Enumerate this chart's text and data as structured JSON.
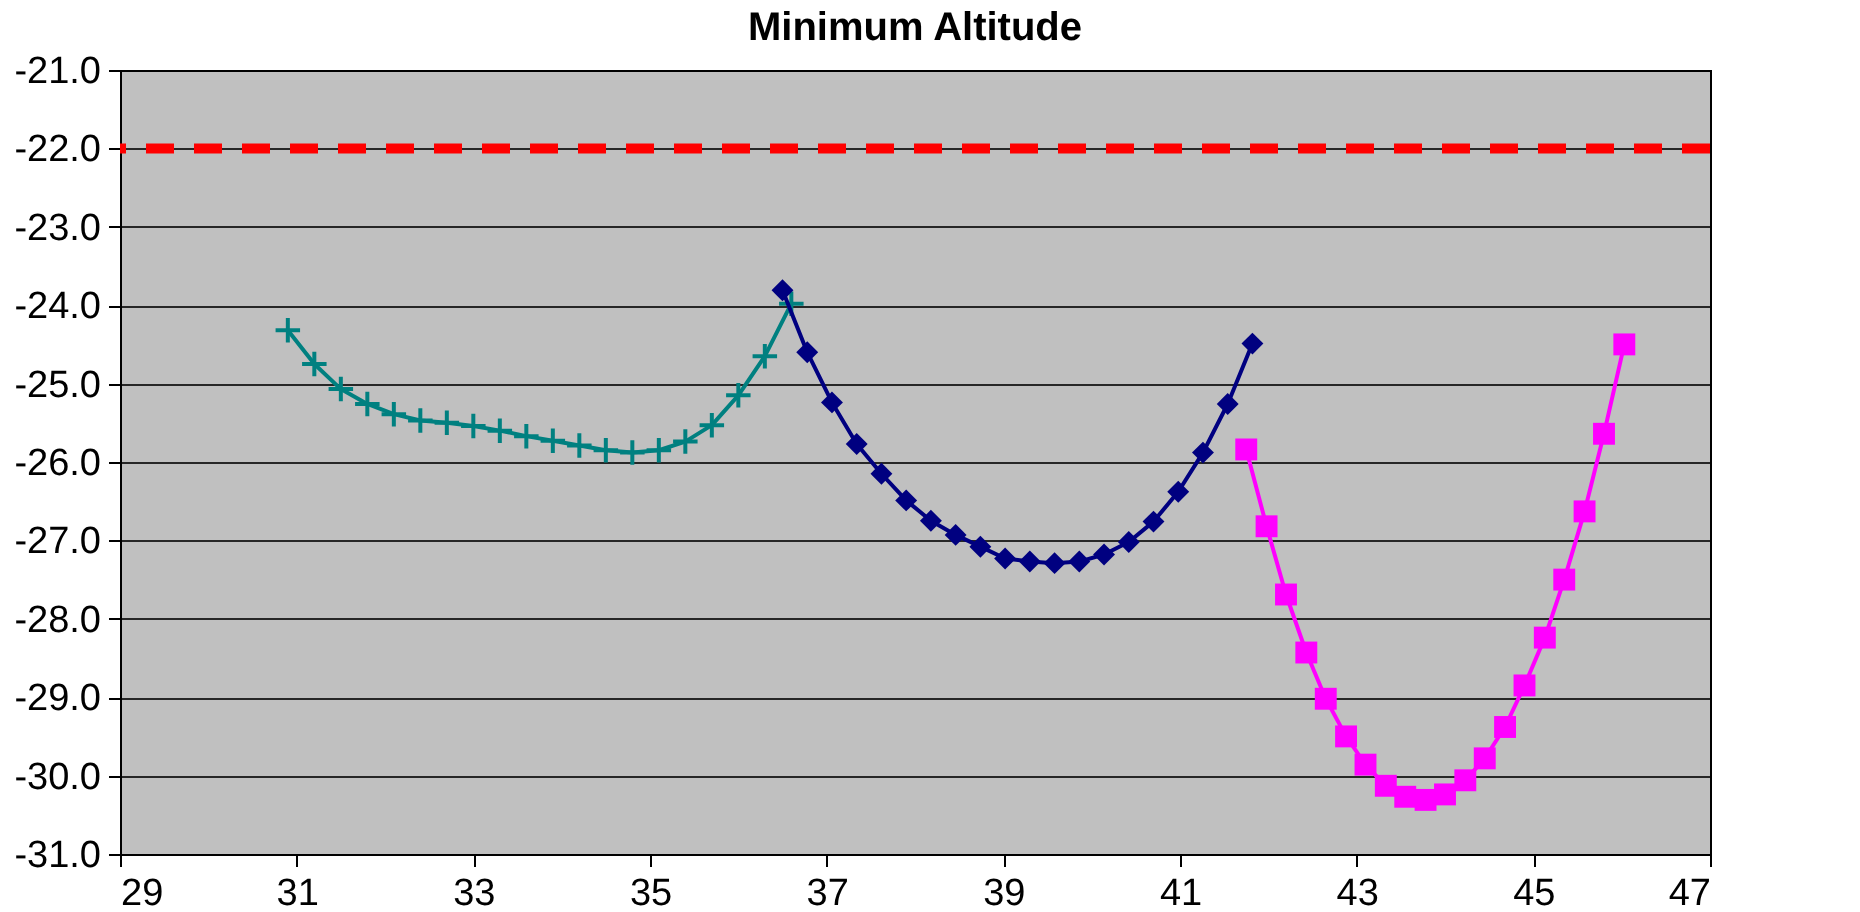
{
  "chart_data": {
    "type": "line",
    "title": "Minimum Altitude",
    "xlim": [
      29,
      47
    ],
    "xticks": [
      29,
      31,
      33,
      35,
      37,
      39,
      41,
      43,
      45,
      47
    ],
    "ylim": [
      -31,
      -21
    ],
    "yticks": [
      {
        "value": -31,
        "label": "-31.0"
      },
      {
        "value": -30,
        "label": "-30.0"
      },
      {
        "value": -29,
        "label": "-29.0"
      },
      {
        "value": -28,
        "label": "-28.0"
      },
      {
        "value": -27,
        "label": "-27.0"
      },
      {
        "value": -26,
        "label": "-26.0"
      },
      {
        "value": -25,
        "label": "-25.0"
      },
      {
        "value": -24,
        "label": "-24.0"
      },
      {
        "value": -23,
        "label": "-23.0"
      },
      {
        "value": -22,
        "label": "-22.0"
      },
      {
        "value": -21,
        "label": "-21.0"
      }
    ],
    "grid": "y",
    "legend": false,
    "line_style": "solid",
    "ref_lines": [
      {
        "axis": "y",
        "value": -22,
        "label": null,
        "color": "#ff0000",
        "line_style": "dashed"
      }
    ],
    "series": [
      {
        "color": "#008080",
        "marker": "cross",
        "x": [
          30.9,
          31.2,
          31.5,
          31.8,
          32.1,
          32.4,
          32.7,
          33.0,
          33.3,
          33.6,
          33.9,
          34.2,
          34.5,
          34.8,
          35.1,
          35.4,
          35.7,
          36.0,
          36.3,
          36.6
        ],
        "values": [
          -24.32,
          -24.75,
          -25.07,
          -25.26,
          -25.39,
          -25.47,
          -25.5,
          -25.54,
          -25.6,
          -25.67,
          -25.73,
          -25.79,
          -25.85,
          -25.88,
          -25.85,
          -25.74,
          -25.53,
          -25.15,
          -24.65,
          -23.98
        ]
      },
      {
        "color": "#000080",
        "marker": "diamond",
        "x": [
          36.5,
          36.78,
          37.06,
          37.34,
          37.62,
          37.9,
          38.18,
          38.46,
          38.74,
          39.02,
          39.3,
          39.58,
          39.86,
          40.14,
          40.42,
          40.7,
          40.98,
          41.26,
          41.54,
          41.82
        ],
        "values": [
          -23.81,
          -24.6,
          -25.24,
          -25.77,
          -26.15,
          -26.49,
          -26.75,
          -26.93,
          -27.08,
          -27.23,
          -27.27,
          -27.29,
          -27.27,
          -27.18,
          -27.02,
          -26.76,
          -26.38,
          -25.88,
          -25.26,
          -24.49
        ]
      },
      {
        "color": "#ff00ff",
        "marker": "square",
        "x": [
          41.75,
          41.98,
          42.2,
          42.43,
          42.65,
          42.88,
          43.1,
          43.33,
          43.55,
          43.78,
          44.0,
          44.23,
          44.45,
          44.68,
          44.9,
          45.13,
          45.35,
          45.58,
          45.8,
          46.03
        ],
        "values": [
          -25.84,
          -26.82,
          -27.69,
          -28.43,
          -29.02,
          -29.5,
          -29.86,
          -30.13,
          -30.27,
          -30.31,
          -30.24,
          -30.06,
          -29.78,
          -29.38,
          -28.85,
          -28.24,
          -27.5,
          -26.63,
          -25.64,
          -24.5
        ]
      }
    ]
  }
}
